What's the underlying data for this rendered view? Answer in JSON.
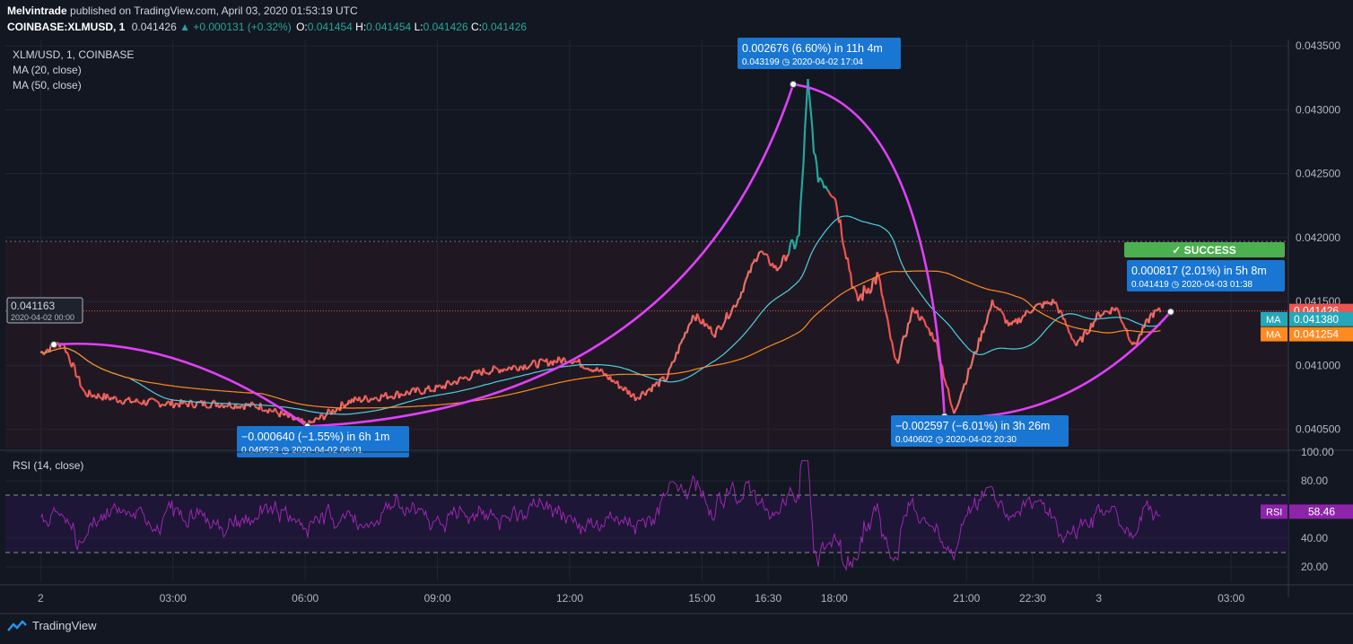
{
  "header": {
    "author": "Melvintrade",
    "published_text": " published on TradingView.com, April 03, 2020 01:53:19 UTC",
    "symbol_line": "COINBASE:XLMUSD, 1",
    "last": "0.041426",
    "change": "▲ +0.000131 (+0.32%)",
    "ohlc": [
      {
        "k": "O:",
        "v": "0.041454"
      },
      {
        "k": "H:",
        "v": "0.041454"
      },
      {
        "k": "L:",
        "v": "0.041426"
      },
      {
        "k": "C:",
        "v": "0.041426"
      }
    ]
  },
  "legend": {
    "symbol": "XLM/USD, 1, COINBASE",
    "ma20": "MA (20, close)",
    "ma50": "MA (50, close)",
    "rsi": "RSI (14, close)"
  },
  "footer": {
    "brand": "TradingView"
  },
  "colors": {
    "background": "#131722",
    "up": "#26a69a",
    "down": "#ef5350",
    "ma20": "#4dd0e1",
    "ma50": "#ff8a20",
    "rsi": "#9c27b0",
    "annotation_arrow": "#e040fb",
    "label_blue": "#1976d2",
    "success_green": "#4caf50"
  },
  "chart_data": {
    "type": "line",
    "title": "XLM/USD, 1, COINBASE",
    "x_ticks": [
      "2",
      "03:00",
      "06:00",
      "09:00",
      "12:00",
      "15:00",
      "16:30",
      "18:00",
      "21:00",
      "22:30",
      "3",
      "03:00"
    ],
    "y_ticks": [
      "0.043500",
      "0.043000",
      "0.042500",
      "0.042000",
      "0.041500",
      "0.041000",
      "0.040500"
    ],
    "ylim": [
      0.04035,
      0.04355
    ],
    "price_path": [
      {
        "t": 0,
        "v": 0.0411
      },
      {
        "t": 0.5,
        "v": 0.04118
      },
      {
        "t": 1.0,
        "v": 0.04078
      },
      {
        "t": 2.0,
        "v": 0.04072
      },
      {
        "t": 3.0,
        "v": 0.0407
      },
      {
        "t": 4.0,
        "v": 0.0407
      },
      {
        "t": 5.0,
        "v": 0.04068
      },
      {
        "t": 5.8,
        "v": 0.04057
      },
      {
        "t": 6.05,
        "v": 0.04053
      },
      {
        "t": 7.0,
        "v": 0.04072
      },
      {
        "t": 8.0,
        "v": 0.04077
      },
      {
        "t": 9.0,
        "v": 0.04082
      },
      {
        "t": 10.0,
        "v": 0.04095
      },
      {
        "t": 11.0,
        "v": 0.041
      },
      {
        "t": 12.0,
        "v": 0.04105
      },
      {
        "t": 12.7,
        "v": 0.04095
      },
      {
        "t": 13.5,
        "v": 0.04075
      },
      {
        "t": 14.2,
        "v": 0.0409
      },
      {
        "t": 14.8,
        "v": 0.0414
      },
      {
        "t": 15.3,
        "v": 0.04125
      },
      {
        "t": 15.8,
        "v": 0.0415
      },
      {
        "t": 16.3,
        "v": 0.0419
      },
      {
        "t": 16.7,
        "v": 0.04175
      },
      {
        "t": 17.2,
        "v": 0.042
      },
      {
        "t": 17.4,
        "v": 0.0432
      },
      {
        "t": 17.6,
        "v": 0.0425
      },
      {
        "t": 18.0,
        "v": 0.04235
      },
      {
        "t": 18.5,
        "v": 0.0415
      },
      {
        "t": 19.0,
        "v": 0.0417
      },
      {
        "t": 19.4,
        "v": 0.041
      },
      {
        "t": 19.8,
        "v": 0.04145
      },
      {
        "t": 20.3,
        "v": 0.0412
      },
      {
        "t": 20.7,
        "v": 0.04062
      },
      {
        "t": 21.0,
        "v": 0.0409
      },
      {
        "t": 21.6,
        "v": 0.0415
      },
      {
        "t": 22.0,
        "v": 0.0413
      },
      {
        "t": 22.5,
        "v": 0.04145
      },
      {
        "t": 23.0,
        "v": 0.0415
      },
      {
        "t": 23.5,
        "v": 0.04115
      },
      {
        "t": 24.0,
        "v": 0.0414
      },
      {
        "t": 24.4,
        "v": 0.04145
      },
      {
        "t": 24.8,
        "v": 0.04115
      },
      {
        "t": 25.2,
        "v": 0.0414
      },
      {
        "t": 25.4,
        "v": 0.041426
      }
    ],
    "ma_values": {
      "ma20": "0.041380",
      "ma50": "0.041254"
    },
    "last_price": "0.041426",
    "prev_marker": {
      "price": "0.041163",
      "time": "2020-04-02 00:00"
    },
    "annotations": [
      {
        "change": "−0.000640 (−1.55%) in 6h 1m",
        "detail": "0.040523 ◷ 2020-04-02  06:01",
        "from_t": 0.3,
        "from_v": 0.041163,
        "to_t": 6.05,
        "to_v": 0.040523
      },
      {
        "change": "0.002676 (6.60%) in 11h 4m",
        "detail": "0.043199 ◷ 2020-04-02  17:04",
        "from_t": 6.05,
        "from_v": 0.040523,
        "to_t": 17.07,
        "to_v": 0.043199
      },
      {
        "change": "−0.002597 (−6.01%) in 3h 26m",
        "detail": "0.040602 ◷ 2020-04-02  20:30",
        "from_t": 17.07,
        "from_v": 0.043199,
        "to_t": 20.5,
        "to_v": 0.040602
      },
      {
        "change": "0.000817 (2.01%) in 5h 8m",
        "detail": "0.041419 ◷ 2020-04-03  01:38",
        "from_t": 20.5,
        "from_v": 0.040602,
        "to_t": 25.63,
        "to_v": 0.041419
      }
    ],
    "success_label": "✓ SUCCESS",
    "rsi": {
      "label": "RSI (14, close)",
      "y_ticks": [
        "100.00",
        "80.00",
        "40.00",
        "20.00"
      ],
      "ylim": [
        10,
        100
      ],
      "bands": [
        30,
        70
      ],
      "last": "58.46",
      "tag": "RSI"
    },
    "ma_tag": "MA"
  }
}
